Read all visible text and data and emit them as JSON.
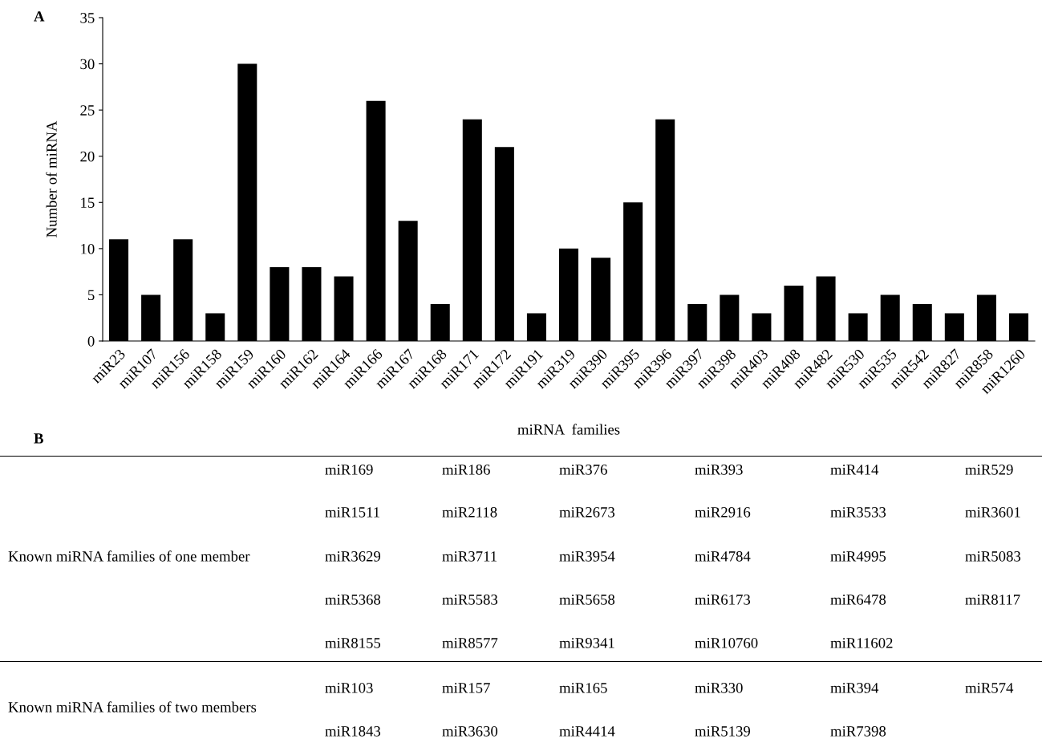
{
  "chart_data": [
    {
      "type": "bar",
      "xlabel": "miRNA  families",
      "ylabel": "Number of miRNA",
      "annotations": [
        "A",
        "B"
      ],
      "categories": [
        "miR23",
        "miR107",
        "miR156",
        "miR158",
        "miR159",
        "miR160",
        "miR162",
        "miR164",
        "miR166",
        "miR167",
        "miR168",
        "miR171",
        "miR172",
        "miR191",
        "miR319",
        "miR390",
        "miR395",
        "miR396",
        "miR397",
        "miR398",
        "miR403",
        "miR408",
        "miR482",
        "miR530",
        "miR535",
        "miR542",
        "miR827",
        "miR858",
        "miR1260"
      ],
      "values": [
        11,
        5,
        11,
        3,
        30,
        8,
        8,
        7,
        26,
        13,
        4,
        24,
        21,
        3,
        10,
        9,
        15,
        24,
        4,
        5,
        3,
        6,
        7,
        3,
        5,
        4,
        3,
        5,
        3
      ],
      "color": "#000000",
      "ylim": [
        0,
        35
      ],
      "yticks": [
        0,
        5,
        10,
        15,
        20,
        25,
        30,
        35
      ],
      "grid": false
    },
    {
      "type": "other",
      "title": "Known miRNA families of one member",
      "annotations": [
        "miR169",
        "miR186",
        "miR376",
        "miR393",
        "miR414",
        "miR529",
        "miR1511",
        "miR2118",
        "miR2673",
        "miR2916",
        "miR3533",
        "miR3601",
        "miR3629",
        "miR3711",
        "miR3954",
        "miR4784",
        "miR4995",
        "miR5083",
        "miR5368",
        "miR5583",
        "miR5658",
        "miR6173",
        "miR6478",
        "miR8117",
        "miR8155",
        "miR8577",
        "miR9341",
        "miR10760",
        "miR11602"
      ]
    },
    {
      "type": "other",
      "title": "Known miRNA families of two members",
      "annotations": [
        "miR103",
        "miR157",
        "miR165",
        "miR330",
        "miR394",
        "miR574",
        "miR1843",
        "miR3630",
        "miR4414",
        "miR5139",
        "miR7398"
      ]
    }
  ]
}
